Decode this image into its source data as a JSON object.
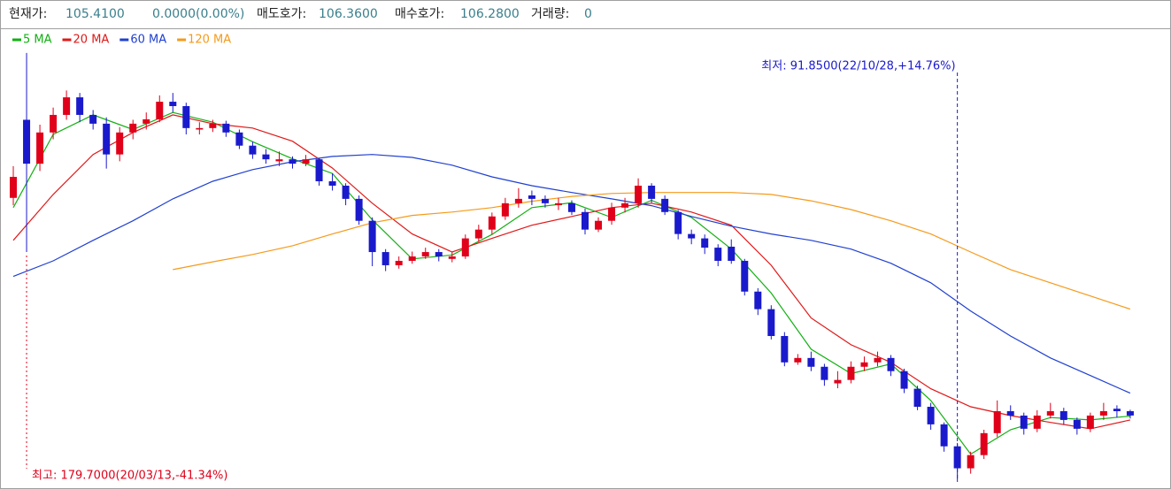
{
  "header": {
    "price_label": "현재가:",
    "price": "105.4100",
    "change": "0.0000(0.00%)",
    "ask_label": "매도호가:",
    "ask": "106.3600",
    "bid_label": "매수호가:",
    "bid": "106.2800",
    "volume_label": "거래량:",
    "volume": "0"
  },
  "chart_data": {
    "type": "candlestick",
    "up_color": "#e0001a",
    "down_color": "#1a1acc",
    "xlim": [
      -1,
      87
    ],
    "ylim": [
      90.9,
      184.2
    ],
    "candles": [
      [
        150.0,
        156.5,
        148.5,
        154.3
      ],
      [
        166.0,
        179.7,
        138.9,
        157.0
      ],
      [
        157.0,
        165.0,
        155.5,
        163.4
      ],
      [
        163.4,
        168.5,
        162.0,
        167.0
      ],
      [
        167.0,
        172.0,
        166.0,
        170.6
      ],
      [
        170.6,
        171.5,
        165.5,
        167.0
      ],
      [
        167.0,
        168.0,
        164.0,
        165.2
      ],
      [
        165.2,
        166.5,
        156.0,
        158.9
      ],
      [
        158.9,
        164.5,
        157.5,
        163.4
      ],
      [
        163.4,
        166.0,
        162.0,
        165.2
      ],
      [
        165.2,
        167.5,
        164.0,
        166.1
      ],
      [
        166.1,
        171.0,
        165.5,
        169.7
      ],
      [
        169.7,
        171.5,
        167.5,
        168.8
      ],
      [
        168.8,
        169.5,
        163.0,
        164.3
      ],
      [
        164.0,
        165.5,
        163.0,
        164.3
      ],
      [
        164.3,
        166.0,
        163.5,
        165.2
      ],
      [
        165.2,
        165.8,
        162.5,
        163.4
      ],
      [
        163.4,
        164.0,
        160.0,
        160.7
      ],
      [
        160.7,
        161.5,
        158.0,
        158.9
      ],
      [
        158.9,
        160.0,
        157.0,
        157.9
      ],
      [
        157.5,
        159.5,
        156.5,
        157.9
      ],
      [
        157.9,
        158.5,
        156.0,
        157.0
      ],
      [
        157.0,
        158.8,
        156.5,
        157.9
      ],
      [
        157.9,
        158.2,
        152.5,
        153.4
      ],
      [
        153.4,
        155.0,
        151.5,
        152.5
      ],
      [
        152.5,
        153.0,
        148.5,
        149.8
      ],
      [
        149.8,
        150.5,
        144.5,
        145.3
      ],
      [
        145.3,
        146.0,
        136.0,
        138.9
      ],
      [
        138.9,
        139.5,
        135.0,
        136.2
      ],
      [
        136.2,
        138.0,
        135.5,
        137.1
      ],
      [
        137.1,
        139.0,
        136.5,
        138.0
      ],
      [
        138.0,
        139.8,
        137.5,
        138.9
      ],
      [
        138.9,
        139.5,
        137.0,
        138.0
      ],
      [
        137.5,
        139.0,
        136.8,
        138.0
      ],
      [
        138.0,
        142.5,
        137.5,
        141.7
      ],
      [
        141.7,
        144.5,
        141.0,
        143.5
      ],
      [
        143.5,
        147.0,
        142.5,
        146.2
      ],
      [
        146.2,
        150.0,
        145.5,
        148.9
      ],
      [
        148.9,
        152.0,
        148.0,
        149.8
      ],
      [
        150.5,
        151.5,
        148.5,
        149.8
      ],
      [
        149.8,
        150.5,
        148.0,
        148.9
      ],
      [
        148.5,
        150.0,
        147.5,
        148.9
      ],
      [
        148.9,
        149.5,
        146.5,
        147.1
      ],
      [
        147.1,
        147.8,
        142.5,
        143.5
      ],
      [
        143.5,
        146.0,
        143.0,
        145.3
      ],
      [
        145.3,
        149.0,
        144.5,
        148.0
      ],
      [
        148.0,
        150.0,
        147.0,
        148.9
      ],
      [
        148.9,
        154.0,
        148.0,
        152.5
      ],
      [
        152.5,
        153.0,
        149.0,
        149.8
      ],
      [
        149.8,
        150.5,
        146.5,
        147.1
      ],
      [
        147.1,
        147.5,
        141.5,
        142.6
      ],
      [
        142.6,
        143.5,
        140.5,
        141.7
      ],
      [
        141.7,
        142.5,
        138.5,
        139.8
      ],
      [
        139.8,
        140.5,
        136.0,
        137.1
      ],
      [
        140.0,
        141.5,
        136.5,
        137.1
      ],
      [
        137.1,
        137.5,
        130.0,
        130.8
      ],
      [
        130.8,
        131.5,
        126.0,
        127.2
      ],
      [
        127.2,
        128.0,
        121.0,
        121.7
      ],
      [
        121.7,
        122.5,
        115.5,
        116.3
      ],
      [
        116.3,
        118.0,
        115.8,
        117.2
      ],
      [
        117.2,
        118.5,
        114.5,
        115.4
      ],
      [
        115.4,
        116.0,
        111.5,
        112.7
      ],
      [
        112.0,
        114.5,
        111.0,
        112.7
      ],
      [
        112.7,
        116.5,
        112.0,
        115.4
      ],
      [
        115.4,
        117.5,
        114.5,
        116.3
      ],
      [
        116.3,
        118.5,
        115.5,
        117.2
      ],
      [
        117.2,
        117.8,
        113.5,
        114.5
      ],
      [
        114.5,
        115.0,
        110.0,
        110.9
      ],
      [
        110.9,
        111.5,
        106.5,
        107.2
      ],
      [
        107.2,
        108.0,
        102.5,
        103.6
      ],
      [
        103.6,
        104.0,
        98.0,
        99.1
      ],
      [
        99.1,
        99.8,
        91.85,
        94.6
      ],
      [
        94.6,
        98.0,
        93.5,
        97.3
      ],
      [
        97.3,
        102.5,
        96.5,
        101.8
      ],
      [
        101.8,
        108.5,
        101.0,
        106.3
      ],
      [
        106.3,
        107.5,
        104.5,
        105.4
      ],
      [
        105.4,
        106.0,
        101.5,
        102.7
      ],
      [
        102.7,
        106.5,
        102.0,
        105.4
      ],
      [
        105.4,
        108.0,
        104.8,
        106.3
      ],
      [
        106.3,
        107.0,
        103.5,
        104.5
      ],
      [
        104.5,
        105.0,
        101.5,
        102.7
      ],
      [
        102.7,
        106.0,
        102.0,
        105.4
      ],
      [
        105.4,
        108.0,
        104.5,
        106.3
      ],
      [
        106.8,
        107.5,
        105.0,
        106.3
      ],
      [
        106.3,
        106.6,
        104.8,
        105.41
      ]
    ],
    "series": [
      {
        "name": "5 MA",
        "color": "#11b011",
        "x": [
          0,
          3,
          6,
          9,
          12,
          15,
          18,
          21,
          24,
          27,
          30,
          33,
          36,
          39,
          42,
          45,
          48,
          51,
          54,
          57,
          60,
          63,
          66,
          69,
          72,
          75,
          78,
          81,
          84
        ],
        "values": [
          148.0,
          163.0,
          167.0,
          164.0,
          167.5,
          165.5,
          161.5,
          158.0,
          155.0,
          145.5,
          137.5,
          138.3,
          142.5,
          148.0,
          149.0,
          146.0,
          149.5,
          146.0,
          139.5,
          130.5,
          119.0,
          114.0,
          116.0,
          108.5,
          97.5,
          102.5,
          105.0,
          104.5,
          105.3
        ]
      },
      {
        "name": "20 MA",
        "color": "#e01818",
        "x": [
          0,
          3,
          6,
          9,
          12,
          15,
          18,
          21,
          24,
          27,
          30,
          33,
          36,
          39,
          42,
          45,
          48,
          51,
          54,
          57,
          60,
          63,
          66,
          69,
          72,
          75,
          78,
          81,
          84
        ],
        "values": [
          141.3,
          150.7,
          158.9,
          163.4,
          167.0,
          165.2,
          164.3,
          161.6,
          156.1,
          148.9,
          142.6,
          138.9,
          141.7,
          144.4,
          146.2,
          148.0,
          148.9,
          147.1,
          144.4,
          136.2,
          125.4,
          119.9,
          116.3,
          110.9,
          107.2,
          105.4,
          104.0,
          102.7,
          104.5
        ]
      },
      {
        "name": "60 MA",
        "color": "#2040d0",
        "x": [
          0,
          3,
          6,
          9,
          12,
          15,
          18,
          21,
          24,
          27,
          30,
          33,
          36,
          39,
          42,
          45,
          48,
          51,
          54,
          57,
          60,
          63,
          66,
          69,
          72,
          75,
          78,
          81,
          84
        ],
        "values": [
          133.9,
          137.1,
          141.3,
          145.3,
          149.8,
          153.4,
          155.8,
          157.4,
          158.5,
          158.9,
          158.3,
          156.7,
          154.3,
          152.5,
          151.1,
          149.8,
          148.4,
          146.2,
          144.2,
          142.6,
          141.3,
          139.5,
          136.6,
          132.6,
          126.8,
          121.7,
          117.2,
          113.6,
          110.0
        ]
      },
      {
        "name": "120 MA",
        "color": "#f59a1a",
        "x": [
          12,
          15,
          18,
          21,
          24,
          27,
          30,
          33,
          36,
          39,
          42,
          45,
          48,
          51,
          54,
          57,
          60,
          63,
          66,
          69,
          72,
          75,
          78,
          81,
          84
        ],
        "values": [
          135.3,
          136.9,
          138.4,
          140.2,
          142.6,
          144.9,
          146.4,
          147.1,
          148.0,
          149.3,
          150.3,
          150.9,
          151.1,
          151.1,
          151.1,
          150.7,
          149.4,
          147.6,
          145.3,
          142.6,
          138.9,
          135.3,
          132.6,
          129.9,
          127.2
        ]
      }
    ],
    "annotations": [
      {
        "text": "최저: 91.8500(22/10/28,+14.76%)",
        "value": 91.85,
        "color": "#1a1acc",
        "kind": "low"
      },
      {
        "text": "최고: 179.7000(20/03/13,-41.34%)",
        "value": 179.7,
        "color": "#e0001a",
        "kind": "high"
      }
    ]
  }
}
